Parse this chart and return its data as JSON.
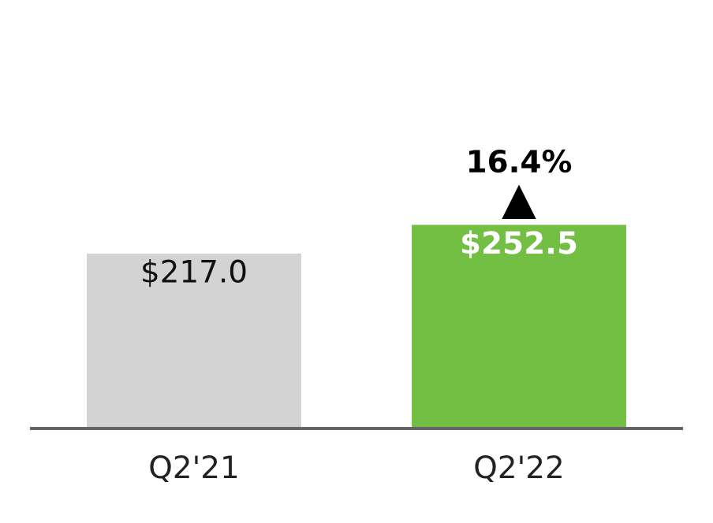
{
  "chart_data": {
    "type": "bar",
    "categories": [
      "Q2'21",
      "Q2'22"
    ],
    "values": [
      217.0,
      252.5
    ],
    "colors": [
      "#d3d3d3",
      "#72bf44"
    ],
    "value_labels": [
      "$217.0",
      "$252.5"
    ],
    "annotations": [
      {
        "text": "16.4%",
        "x": "Q2'22",
        "y": 252.5
      }
    ],
    "tick_labels": "x",
    "grid": false
  }
}
